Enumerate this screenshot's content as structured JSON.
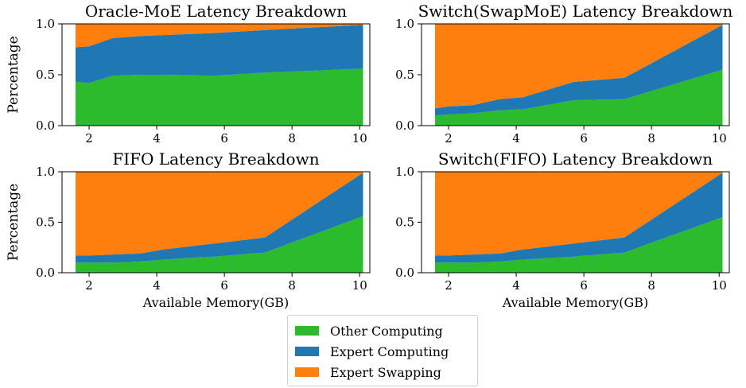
{
  "chart_data": [
    {
      "type": "area",
      "stacked": true,
      "title": "Oracle-MoE Latency Breakdown",
      "ylabel": "Percentage",
      "xlabel": "",
      "x": [
        1.6,
        2.0,
        2.7,
        3.5,
        4.2,
        5.7,
        7.2,
        10.1
      ],
      "xlim": [
        1.2,
        10.3
      ],
      "ylim": [
        0,
        1.0
      ],
      "xticks": [
        2,
        4,
        6,
        8,
        10
      ],
      "yticks": [
        "0.0",
        "0.5",
        "1.0"
      ],
      "series": [
        {
          "name": "Other Computing",
          "values": [
            0.43,
            0.42,
            0.49,
            0.5,
            0.5,
            0.49,
            0.52,
            0.56
          ]
        },
        {
          "name": "Expert Computing",
          "values": [
            0.34,
            0.36,
            0.37,
            0.38,
            0.39,
            0.42,
            0.42,
            0.43
          ]
        },
        {
          "name": "Expert Swapping",
          "values": [
            0.23,
            0.22,
            0.14,
            0.12,
            0.11,
            0.09,
            0.06,
            0.01
          ]
        }
      ]
    },
    {
      "type": "area",
      "stacked": true,
      "title": "Switch(SwapMoE) Latency Breakdown",
      "ylabel": "",
      "xlabel": "",
      "x": [
        1.6,
        2.0,
        2.7,
        3.5,
        4.2,
        5.7,
        7.2,
        10.1
      ],
      "xlim": [
        1.2,
        10.3
      ],
      "ylim": [
        0,
        1.0
      ],
      "xticks": [
        2,
        4,
        6,
        8,
        10
      ],
      "yticks": [
        "0.0",
        "0.5",
        "1.0"
      ],
      "series": [
        {
          "name": "Other Computing",
          "values": [
            0.1,
            0.11,
            0.12,
            0.15,
            0.16,
            0.25,
            0.26,
            0.55
          ]
        },
        {
          "name": "Expert Computing",
          "values": [
            0.07,
            0.08,
            0.08,
            0.11,
            0.12,
            0.18,
            0.21,
            0.44
          ]
        },
        {
          "name": "Expert Swapping",
          "values": [
            0.83,
            0.81,
            0.8,
            0.74,
            0.72,
            0.57,
            0.53,
            0.01
          ]
        }
      ]
    },
    {
      "type": "area",
      "stacked": true,
      "title": "FIFO Latency Breakdown",
      "ylabel": "Percentage",
      "xlabel": "Available Memory(GB)",
      "x": [
        1.6,
        2.0,
        2.7,
        3.5,
        4.2,
        5.7,
        7.2,
        10.1
      ],
      "xlim": [
        1.2,
        10.3
      ],
      "ylim": [
        0,
        1.0
      ],
      "xticks": [
        2,
        4,
        6,
        8,
        10
      ],
      "yticks": [
        "0.0",
        "0.5",
        "1.0"
      ],
      "series": [
        {
          "name": "Other Computing",
          "values": [
            0.1,
            0.1,
            0.1,
            0.11,
            0.13,
            0.16,
            0.2,
            0.56
          ]
        },
        {
          "name": "Expert Computing",
          "values": [
            0.07,
            0.07,
            0.08,
            0.08,
            0.1,
            0.13,
            0.15,
            0.43
          ]
        },
        {
          "name": "Expert Swapping",
          "values": [
            0.83,
            0.83,
            0.82,
            0.81,
            0.77,
            0.71,
            0.65,
            0.01
          ]
        }
      ]
    },
    {
      "type": "area",
      "stacked": true,
      "title": "Switch(FIFO) Latency Breakdown",
      "ylabel": "",
      "xlabel": "Available Memory(GB)",
      "x": [
        1.6,
        2.0,
        2.7,
        3.5,
        4.2,
        5.7,
        7.2,
        10.1
      ],
      "xlim": [
        1.2,
        10.3
      ],
      "ylim": [
        0,
        1.0
      ],
      "xticks": [
        2,
        4,
        6,
        8,
        10
      ],
      "yticks": [
        "0.0",
        "0.5",
        "1.0"
      ],
      "series": [
        {
          "name": "Other Computing",
          "values": [
            0.1,
            0.1,
            0.1,
            0.11,
            0.13,
            0.16,
            0.2,
            0.55
          ]
        },
        {
          "name": "Expert Computing",
          "values": [
            0.07,
            0.07,
            0.08,
            0.08,
            0.1,
            0.13,
            0.15,
            0.44
          ]
        },
        {
          "name": "Expert Swapping",
          "values": [
            0.83,
            0.83,
            0.82,
            0.81,
            0.77,
            0.71,
            0.65,
            0.01
          ]
        }
      ]
    }
  ],
  "legend": {
    "placement": "bottom-center",
    "items": [
      {
        "label": "Other Computing",
        "color": "#2cbb2c"
      },
      {
        "label": "Expert Computing",
        "color": "#1f77b4"
      },
      {
        "label": "Expert Swapping",
        "color": "#ff7f0e"
      }
    ]
  }
}
